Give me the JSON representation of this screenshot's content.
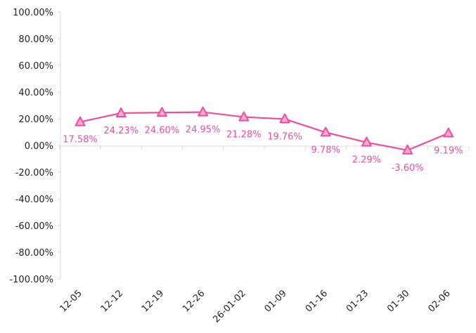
{
  "chart_data": {
    "type": "line",
    "categories": [
      "12-05",
      "12-12",
      "12-19",
      "12-26",
      "26-01-02",
      "01-09",
      "01-16",
      "01-23",
      "01-30",
      "02-06"
    ],
    "series": [
      {
        "values": [
          17.58,
          24.23,
          24.6,
          24.95,
          21.28,
          19.76,
          9.78,
          2.29,
          -3.6,
          9.19
        ],
        "labels": [
          "17.58%",
          "24.23%",
          "24.60%",
          "24.95%",
          "21.28%",
          "19.76%",
          "9.78%",
          "2.29%",
          "-3.60%",
          "9.19%"
        ],
        "color": "#ef4da0",
        "marker": "triangle"
      }
    ],
    "yticks": [
      "100.00%",
      "80.00%",
      "60.00%",
      "40.00%",
      "20.00%",
      "0.00%",
      "-20.00%",
      "-40.00%",
      "-60.00%",
      "-80.00%",
      "-100.00%"
    ],
    "ylim": [
      -100,
      100
    ],
    "ytick_values": [
      100,
      80,
      60,
      40,
      20,
      0,
      -20,
      -40,
      -60,
      -80,
      -100
    ],
    "grid": false,
    "legend": "none"
  }
}
